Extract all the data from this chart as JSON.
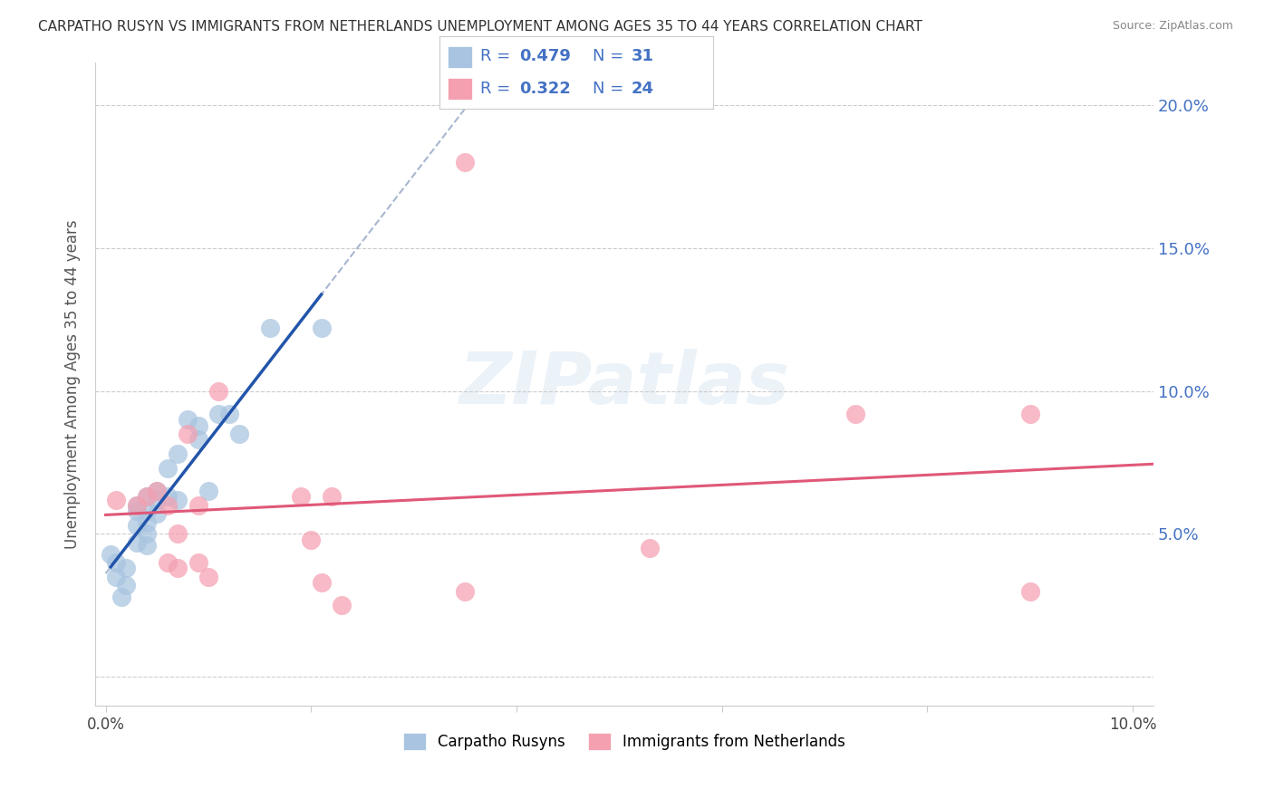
{
  "title": "CARPATHO RUSYN VS IMMIGRANTS FROM NETHERLANDS UNEMPLOYMENT AMONG AGES 35 TO 44 YEARS CORRELATION CHART",
  "source": "Source: ZipAtlas.com",
  "ylabel": "Unemployment Among Ages 35 to 44 years",
  "xlim": [
    -0.001,
    0.102
  ],
  "ylim": [
    -0.01,
    0.215
  ],
  "yticks": [
    0.0,
    0.05,
    0.1,
    0.15,
    0.2
  ],
  "xticks": [
    0.0,
    0.02,
    0.04,
    0.06,
    0.08,
    0.1
  ],
  "blue_R": 0.479,
  "blue_N": 31,
  "pink_R": 0.322,
  "pink_N": 24,
  "blue_scatter_color": "#a8c4e0",
  "pink_scatter_color": "#f4a0b0",
  "blue_line_color": "#2255aa",
  "pink_line_color": "#e05878",
  "dashed_color": "#99aac8",
  "blue_scatter_x": [
    0.0005,
    0.001,
    0.001,
    0.0015,
    0.002,
    0.002,
    0.003,
    0.003,
    0.003,
    0.003,
    0.004,
    0.004,
    0.004,
    0.004,
    0.004,
    0.005,
    0.005,
    0.005,
    0.006,
    0.006,
    0.007,
    0.007,
    0.008,
    0.009,
    0.009,
    0.01,
    0.011,
    0.012,
    0.013,
    0.016,
    0.021
  ],
  "blue_scatter_y": [
    0.043,
    0.04,
    0.035,
    0.028,
    0.038,
    0.032,
    0.06,
    0.058,
    0.053,
    0.047,
    0.063,
    0.058,
    0.054,
    0.05,
    0.046,
    0.065,
    0.062,
    0.057,
    0.073,
    0.063,
    0.078,
    0.062,
    0.09,
    0.088,
    0.083,
    0.065,
    0.092,
    0.092,
    0.085,
    0.122,
    0.122
  ],
  "pink_scatter_x": [
    0.001,
    0.003,
    0.004,
    0.005,
    0.006,
    0.006,
    0.007,
    0.007,
    0.008,
    0.009,
    0.009,
    0.01,
    0.011,
    0.019,
    0.02,
    0.021,
    0.022,
    0.023,
    0.035,
    0.035,
    0.053,
    0.073,
    0.09,
    0.09
  ],
  "pink_scatter_y": [
    0.062,
    0.06,
    0.063,
    0.065,
    0.06,
    0.04,
    0.05,
    0.038,
    0.085,
    0.06,
    0.04,
    0.035,
    0.1,
    0.063,
    0.048,
    0.033,
    0.063,
    0.025,
    0.18,
    0.03,
    0.045,
    0.092,
    0.092,
    0.03
  ]
}
